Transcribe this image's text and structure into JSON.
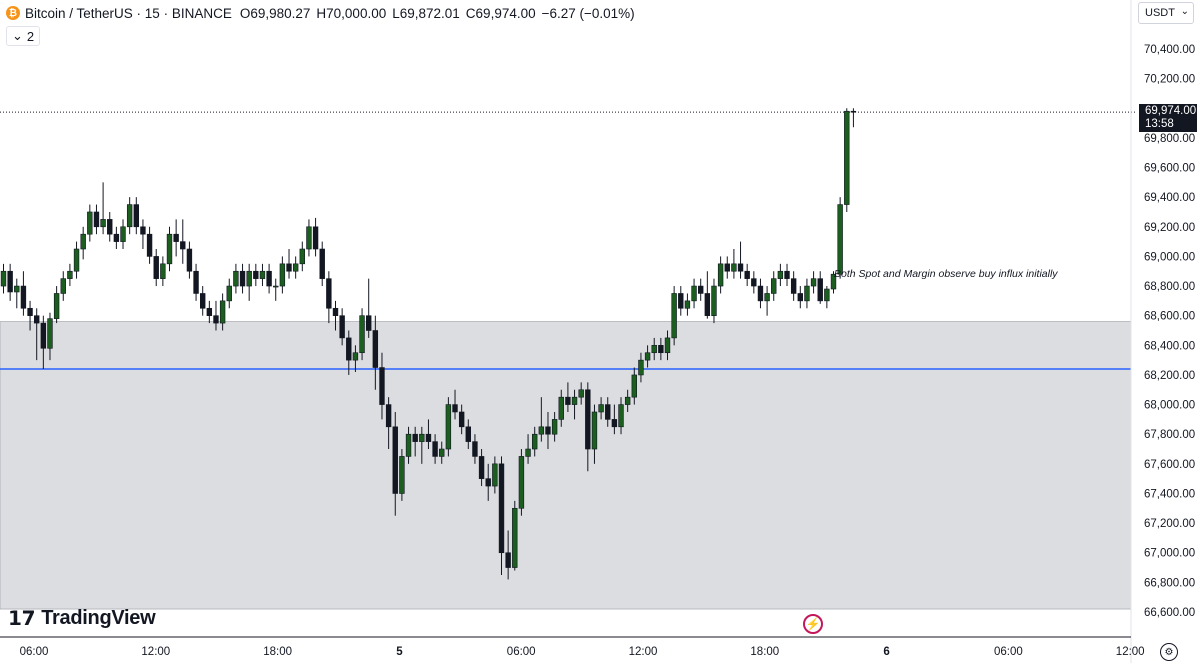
{
  "header": {
    "symbol_icon": "bitcoin-icon",
    "symbol_glyph": "₿",
    "title": "Bitcoin / TetherUS · 15 · BINANCE",
    "ohlc": [
      {
        "key": "O",
        "value": "69,980.27"
      },
      {
        "key": "H",
        "value": "70,000.00"
      },
      {
        "key": "L",
        "value": "69,872.01"
      },
      {
        "key": "C",
        "value": "69,974.00"
      }
    ],
    "change": "−6.27 (−0.01%)",
    "collapse_label": "2"
  },
  "price_axis": {
    "currency": "USDT",
    "last_price": "69,974.00",
    "countdown": "13:58"
  },
  "annotation": "Both Spot and Margin observe buy influx initially",
  "branding": {
    "logo": "TradingView",
    "logo_icon": "tradingview-logo-icon"
  },
  "footer_icons": {
    "lightning": "lightning-icon",
    "settings": "settings-gear-icon"
  },
  "colors": {
    "up": "#1b5e20",
    "down": "#131722",
    "wick": "#131722",
    "zone": "#dcdde0",
    "level_line": "#2962ff",
    "grid": "#ffffff"
  },
  "chart_data": {
    "type": "candlestick",
    "title": "Bitcoin / TetherUS · 15 · BINANCE",
    "y_ticks": [
      "70,400.00",
      "70,200.00",
      "69,800.00",
      "69,600.00",
      "69,400.00",
      "69,200.00",
      "69,000.00",
      "68,800.00",
      "68,600.00",
      "68,400.00",
      "68,200.00",
      "68,000.00",
      "67,800.00",
      "67,600.00",
      "67,400.00",
      "67,200.00",
      "67,000.00",
      "66,800.00",
      "66,600.00"
    ],
    "x_ticks": [
      "06:00",
      "12:00",
      "18:00",
      "5",
      "06:00",
      "12:00",
      "18:00",
      "6",
      "06:00",
      "12:00"
    ],
    "ylim": [
      66500,
      70500
    ],
    "support_zone": [
      66620,
      68560
    ],
    "level_line": 68240,
    "last_price_line": 69974,
    "candles": [
      [
        68800,
        68950,
        68750,
        68900
      ],
      [
        68900,
        68950,
        68700,
        68760
      ],
      [
        68760,
        68850,
        68650,
        68800
      ],
      [
        68800,
        68900,
        68600,
        68650
      ],
      [
        68650,
        68700,
        68500,
        68600
      ],
      [
        68600,
        68650,
        68300,
        68550
      ],
      [
        68550,
        68600,
        68240,
        68380
      ],
      [
        68380,
        68620,
        68300,
        68580
      ],
      [
        68580,
        68800,
        68550,
        68750
      ],
      [
        68750,
        68900,
        68700,
        68850
      ],
      [
        68850,
        68950,
        68800,
        68900
      ],
      [
        68900,
        69100,
        68850,
        69050
      ],
      [
        69050,
        69200,
        68980,
        69150
      ],
      [
        69150,
        69350,
        69100,
        69300
      ],
      [
        69300,
        69350,
        69150,
        69200
      ],
      [
        69200,
        69500,
        69150,
        69250
      ],
      [
        69250,
        69300,
        69100,
        69150
      ],
      [
        69150,
        69200,
        69050,
        69100
      ],
      [
        69100,
        69250,
        69050,
        69200
      ],
      [
        69200,
        69400,
        69150,
        69350
      ],
      [
        69350,
        69400,
        69150,
        69200
      ],
      [
        69200,
        69250,
        69050,
        69150
      ],
      [
        69150,
        69200,
        68950,
        69000
      ],
      [
        69000,
        69050,
        68800,
        68850
      ],
      [
        68850,
        69000,
        68800,
        68950
      ],
      [
        68950,
        69200,
        68900,
        69150
      ],
      [
        69150,
        69250,
        69000,
        69100
      ],
      [
        69100,
        69250,
        68950,
        69050
      ],
      [
        69050,
        69100,
        68850,
        68900
      ],
      [
        68900,
        68950,
        68700,
        68750
      ],
      [
        68750,
        68800,
        68600,
        68650
      ],
      [
        68650,
        68700,
        68550,
        68600
      ],
      [
        68600,
        68700,
        68500,
        68550
      ],
      [
        68550,
        68750,
        68500,
        68700
      ],
      [
        68700,
        68850,
        68650,
        68800
      ],
      [
        68800,
        68950,
        68750,
        68900
      ],
      [
        68900,
        68950,
        68750,
        68800
      ],
      [
        68800,
        68950,
        68700,
        68900
      ],
      [
        68900,
        68950,
        68800,
        68850
      ],
      [
        68850,
        68950,
        68800,
        68900
      ],
      [
        68900,
        68950,
        68750,
        68800
      ],
      [
        68800,
        68850,
        68700,
        68800
      ],
      [
        68800,
        69000,
        68750,
        68950
      ],
      [
        68950,
        69050,
        68850,
        68900
      ],
      [
        68900,
        69000,
        68850,
        68950
      ],
      [
        68950,
        69100,
        68900,
        69050
      ],
      [
        69050,
        69250,
        69000,
        69200
      ],
      [
        69200,
        69260,
        69000,
        69050
      ],
      [
        69050,
        69100,
        68800,
        68850
      ],
      [
        68850,
        68900,
        68550,
        68650
      ],
      [
        68650,
        68700,
        68500,
        68600
      ],
      [
        68600,
        68650,
        68400,
        68450
      ],
      [
        68450,
        68500,
        68200,
        68300
      ],
      [
        68300,
        68400,
        68220,
        68350
      ],
      [
        68350,
        68650,
        68300,
        68600
      ],
      [
        68600,
        68850,
        68450,
        68500
      ],
      [
        68500,
        68600,
        68100,
        68250
      ],
      [
        68250,
        68350,
        67900,
        68000
      ],
      [
        68000,
        68050,
        67700,
        67850
      ],
      [
        67850,
        67950,
        67250,
        67400
      ],
      [
        67400,
        67700,
        67350,
        67650
      ],
      [
        67650,
        67850,
        67600,
        67800
      ],
      [
        67800,
        67850,
        67650,
        67750
      ],
      [
        67750,
        67850,
        67600,
        67800
      ],
      [
        67800,
        67900,
        67700,
        67750
      ],
      [
        67750,
        67800,
        67600,
        67650
      ],
      [
        67650,
        67750,
        67600,
        67700
      ],
      [
        67700,
        68050,
        67650,
        68000
      ],
      [
        68000,
        68100,
        67900,
        67950
      ],
      [
        67950,
        68000,
        67800,
        67850
      ],
      [
        67850,
        67900,
        67700,
        67750
      ],
      [
        67750,
        67800,
        67600,
        67650
      ],
      [
        67650,
        67700,
        67450,
        67500
      ],
      [
        67500,
        67600,
        67350,
        67450
      ],
      [
        67450,
        67650,
        67400,
        67600
      ],
      [
        67600,
        67650,
        66850,
        67000
      ],
      [
        67000,
        67150,
        66820,
        66900
      ],
      [
        66900,
        67350,
        66880,
        67300
      ],
      [
        67300,
        67700,
        67250,
        67650
      ],
      [
        67650,
        67800,
        67600,
        67700
      ],
      [
        67700,
        67850,
        67650,
        67800
      ],
      [
        67800,
        68050,
        67750,
        67850
      ],
      [
        67850,
        67950,
        67700,
        67800
      ],
      [
        67800,
        67950,
        67750,
        67900
      ],
      [
        67900,
        68100,
        67850,
        68050
      ],
      [
        68050,
        68150,
        67950,
        68000
      ],
      [
        68000,
        68100,
        67900,
        68050
      ],
      [
        68050,
        68150,
        68000,
        68100
      ],
      [
        68100,
        68150,
        67550,
        67700
      ],
      [
        67700,
        68000,
        67600,
        67950
      ],
      [
        67950,
        68050,
        67900,
        68000
      ],
      [
        68000,
        68050,
        67850,
        67900
      ],
      [
        67900,
        68000,
        67800,
        67850
      ],
      [
        67850,
        68050,
        67800,
        68000
      ],
      [
        68000,
        68100,
        67950,
        68050
      ],
      [
        68050,
        68250,
        68000,
        68200
      ],
      [
        68200,
        68350,
        68150,
        68300
      ],
      [
        68300,
        68400,
        68250,
        68350
      ],
      [
        68350,
        68450,
        68300,
        68400
      ],
      [
        68400,
        68450,
        68300,
        68350
      ],
      [
        68350,
        68500,
        68300,
        68450
      ],
      [
        68450,
        68800,
        68400,
        68750
      ],
      [
        68750,
        68800,
        68600,
        68650
      ],
      [
        68650,
        68750,
        68600,
        68700
      ],
      [
        68700,
        68850,
        68650,
        68800
      ],
      [
        68800,
        68850,
        68700,
        68750
      ],
      [
        68750,
        68900,
        68580,
        68600
      ],
      [
        68600,
        68850,
        68550,
        68800
      ],
      [
        68800,
        69000,
        68750,
        68950
      ],
      [
        68950,
        69000,
        68850,
        68900
      ],
      [
        68900,
        69050,
        68850,
        68950
      ],
      [
        68950,
        69100,
        68850,
        68900
      ],
      [
        68900,
        68950,
        68800,
        68850
      ],
      [
        68850,
        68900,
        68750,
        68800
      ],
      [
        68800,
        68850,
        68650,
        68700
      ],
      [
        68700,
        68800,
        68600,
        68750
      ],
      [
        68750,
        68900,
        68700,
        68850
      ],
      [
        68850,
        68950,
        68800,
        68900
      ],
      [
        68900,
        68950,
        68800,
        68850
      ],
      [
        68850,
        68900,
        68700,
        68750
      ],
      [
        68750,
        68800,
        68650,
        68700
      ],
      [
        68700,
        68850,
        68650,
        68800
      ],
      [
        68800,
        68900,
        68750,
        68850
      ],
      [
        68850,
        68900,
        68680,
        68700
      ],
      [
        68700,
        68800,
        68650,
        68780
      ],
      [
        68780,
        68900,
        68750,
        68880
      ],
      [
        68880,
        69400,
        68850,
        69350
      ],
      [
        69350,
        70000,
        69300,
        69980
      ],
      [
        69980,
        70000,
        69872,
        69974
      ]
    ]
  }
}
